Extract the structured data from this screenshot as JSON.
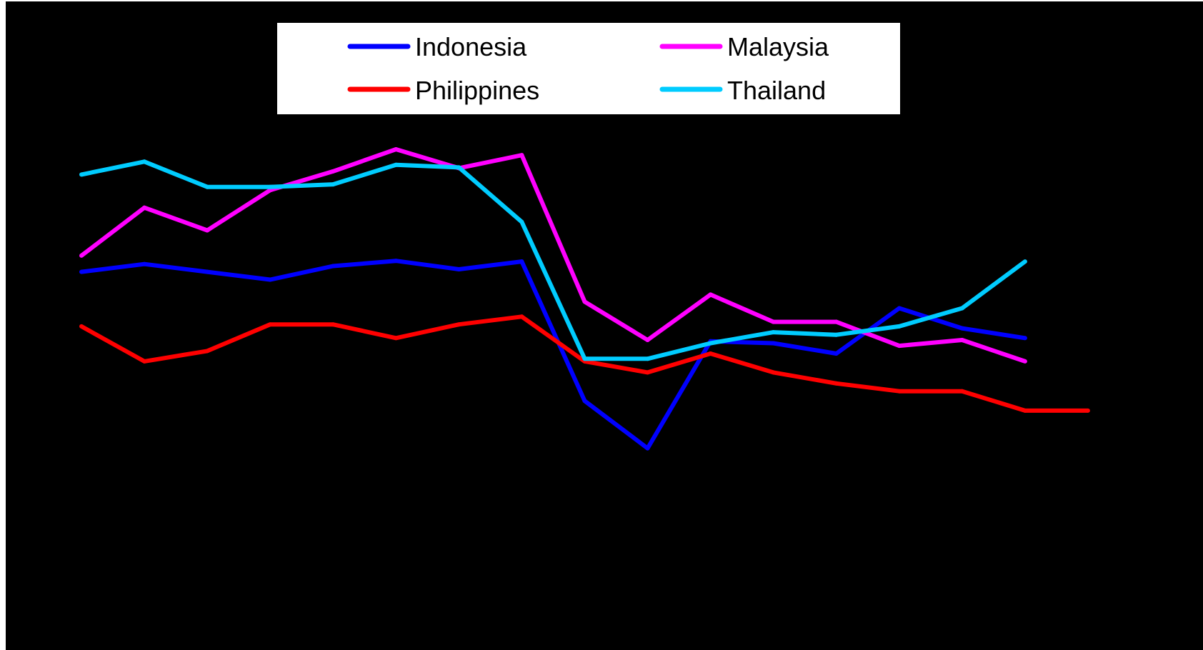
{
  "chart_data": {
    "type": "line",
    "title": "",
    "xlabel": "",
    "ylabel": "",
    "grid": false,
    "legend_position": "top-center",
    "x": [
      1,
      2,
      3,
      4,
      5,
      6,
      7,
      8,
      9,
      10,
      11,
      12,
      13,
      14,
      15,
      16,
      17,
      18
    ],
    "ylim": [
      0,
      100
    ],
    "series": [
      {
        "name": "Indonesia",
        "color": "#0000FF",
        "values": [
          58.3,
          59.5,
          58.3,
          57.1,
          59.2,
          60.0,
          58.7,
          59.9,
          38.4,
          31.1,
          47.6,
          47.3,
          45.7,
          52.7,
          49.6,
          48.1,
          null,
          null
        ]
      },
      {
        "name": "Malaysia",
        "color": "#FF00FF",
        "values": [
          60.8,
          68.2,
          64.7,
          70.9,
          73.8,
          77.2,
          74.3,
          76.3,
          53.7,
          47.8,
          54.8,
          50.6,
          50.6,
          46.9,
          47.8,
          44.5,
          null,
          null
        ]
      },
      {
        "name": "Philippines",
        "color": "#FF0000",
        "values": [
          49.9,
          44.5,
          46.1,
          50.2,
          50.2,
          48.1,
          50.2,
          51.4,
          44.5,
          42.8,
          45.7,
          42.8,
          41.1,
          39.9,
          39.9,
          36.9,
          36.9,
          null
        ]
      },
      {
        "name": "Thailand",
        "color": "#00CCFF",
        "values": [
          73.3,
          75.3,
          71.4,
          71.4,
          71.8,
          74.8,
          74.4,
          66.0,
          44.9,
          44.9,
          47.3,
          49.0,
          48.6,
          49.9,
          52.7,
          59.9,
          null,
          null
        ]
      }
    ]
  }
}
